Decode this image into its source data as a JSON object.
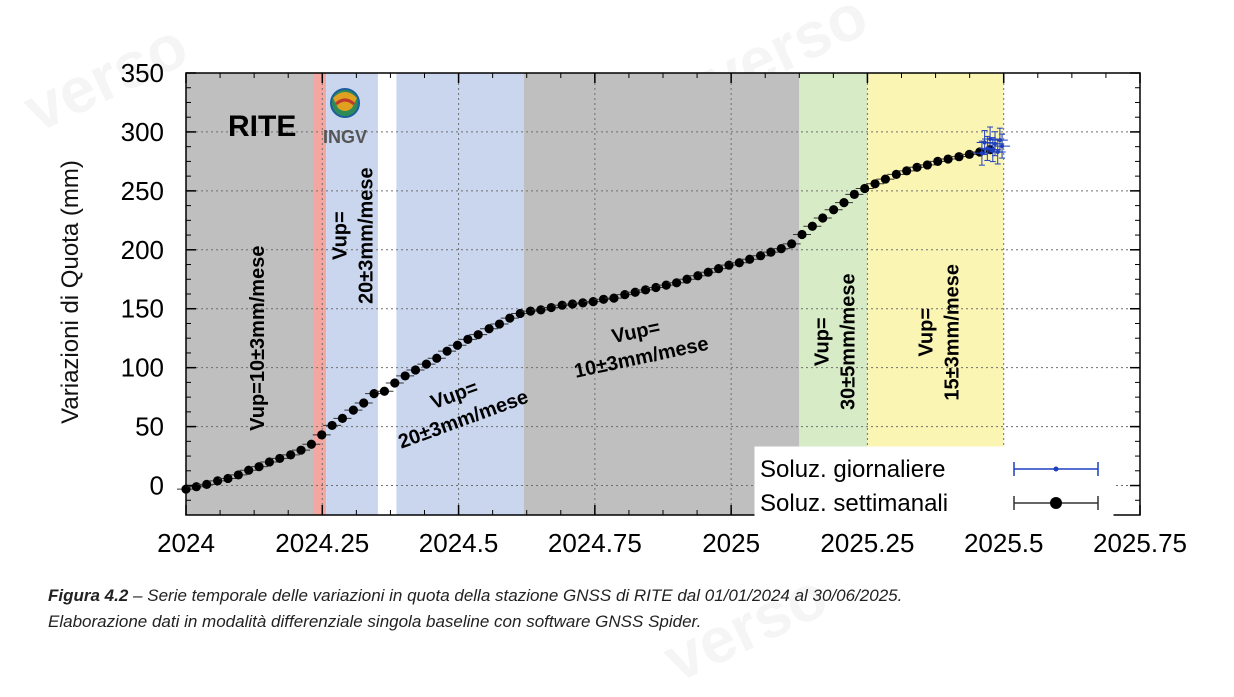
{
  "watermark": {
    "text": "verso"
  },
  "chart_data": {
    "type": "scatter",
    "ylabel": "Variazioni di Quota (mm)",
    "xlim": [
      2024,
      2025.75
    ],
    "ylim": [
      -25,
      350
    ],
    "xticks": [
      2024,
      2024.25,
      2024.5,
      2024.75,
      2025,
      2025.25,
      2025.5,
      2025.75
    ],
    "xtick_labels": [
      "2024",
      "2024.25",
      "2024.5",
      "2024.75",
      "2025",
      "2025.25",
      "2025.5",
      "2025.75"
    ],
    "yticks": [
      0,
      50,
      100,
      150,
      200,
      250,
      300,
      350
    ],
    "ytick_labels": [
      "0",
      "50",
      "100",
      "150",
      "200",
      "250",
      "300",
      "350"
    ],
    "grid": true,
    "station_label": "RITE",
    "logo_text": "INGV",
    "bands": [
      {
        "x0": 2024.0,
        "x1": 2024.233,
        "color": "#bfbfbf"
      },
      {
        "x0": 2024.233,
        "x1": 2024.257,
        "color": "#f4a6a0"
      },
      {
        "x0": 2024.257,
        "x1": 2024.352,
        "color": "#c9d6ee"
      },
      {
        "x0": 2024.386,
        "x1": 2024.62,
        "color": "#c9d6ee"
      },
      {
        "x0": 2024.62,
        "x1": 2025.125,
        "color": "#bfbfbf"
      },
      {
        "x0": 2025.125,
        "x1": 2025.25,
        "color": "#d7ebc6"
      },
      {
        "x0": 2025.25,
        "x1": 2025.5,
        "color": "#fbf5b3"
      }
    ],
    "annotations": [
      {
        "lines": [
          "Vup=10±3mm/mese"
        ],
        "x": 2024.13,
        "y": 125,
        "rotation": -90
      },
      {
        "lines": [
          "Vup=",
          "20±3mm/mese"
        ],
        "x": 2024.305,
        "y": 212,
        "rotation": -90
      },
      {
        "lines": [
          "Vup=",
          "20±3mm/mese"
        ],
        "x": 2024.5,
        "y": 67,
        "rotation": -20
      },
      {
        "lines": [
          "Vup=",
          "10±3mm/mese"
        ],
        "x": 2024.83,
        "y": 120,
        "rotation": -12
      },
      {
        "lines": [
          "Vup=",
          "30±5mm/mese"
        ],
        "x": 2025.19,
        "y": 122,
        "rotation": -90
      },
      {
        "lines": [
          "Vup=",
          "15±3mm/mese"
        ],
        "x": 2025.38,
        "y": 130,
        "rotation": -90
      }
    ],
    "legend_position": "bottom-right",
    "series": [
      {
        "name": "Soluz. settimanali",
        "color": "#000000",
        "marker": "filled-circle-large",
        "x": [
          2024.0,
          2024.019,
          2024.038,
          2024.058,
          2024.077,
          2024.096,
          2024.115,
          2024.134,
          2024.153,
          2024.172,
          2024.192,
          2024.211,
          2024.23,
          2024.249,
          2024.268,
          2024.287,
          2024.307,
          2024.326,
          2024.345,
          2024.364,
          2024.383,
          2024.402,
          2024.421,
          2024.441,
          2024.46,
          2024.479,
          2024.498,
          2024.517,
          2024.536,
          2024.556,
          2024.575,
          2024.594,
          2024.613,
          2024.632,
          2024.651,
          2024.67,
          2024.69,
          2024.709,
          2024.728,
          2024.747,
          2024.766,
          2024.785,
          2024.805,
          2024.824,
          2024.843,
          2024.862,
          2024.881,
          2024.9,
          2024.919,
          2024.939,
          2024.958,
          2024.977,
          2024.996,
          2025.015,
          2025.034,
          2025.054,
          2025.073,
          2025.092,
          2025.111,
          2025.13,
          2025.149,
          2025.168,
          2025.188,
          2025.207,
          2025.226,
          2025.245,
          2025.264,
          2025.283,
          2025.303,
          2025.322,
          2025.341,
          2025.36,
          2025.379,
          2025.398,
          2025.418,
          2025.437,
          2025.456,
          2025.475
        ],
        "y": [
          -3,
          -1,
          1,
          4,
          6,
          9,
          13,
          16,
          20,
          23,
          26,
          30,
          35,
          43,
          51,
          57,
          64,
          70,
          78,
          80,
          87,
          93,
          98,
          103,
          108,
          114,
          119,
          124,
          128,
          133,
          137,
          142,
          146,
          148,
          149,
          151,
          153,
          154,
          155,
          156,
          158,
          159,
          162,
          164,
          166,
          168,
          170,
          172,
          175,
          178,
          181,
          184,
          187,
          189,
          192,
          195,
          198,
          201,
          205,
          213,
          220,
          227,
          234,
          240,
          247,
          252,
          256,
          260,
          264,
          267,
          270,
          272,
          275,
          277,
          279,
          281,
          283,
          285
        ]
      },
      {
        "name": "Soluz. giornaliere",
        "color": "#1f3fbf",
        "marker": "small-dot",
        "x": [
          2025.46,
          2025.465,
          2025.47,
          2025.475,
          2025.48,
          2025.484,
          2025.489,
          2025.493,
          2025.497
        ],
        "y": [
          282,
          291,
          286,
          294,
          285,
          290,
          283,
          293,
          288
        ]
      }
    ]
  },
  "caption": {
    "figure_label": "Figura 4.2",
    "dash": "–",
    "text_line1": "Serie temporale delle variazioni in quota della stazione GNSS di RITE dal 01/01/2024 al 30/06/2025.",
    "text_line2": "Elaborazione dati in modalità differenziale singola baseline con software GNSS Spider."
  }
}
